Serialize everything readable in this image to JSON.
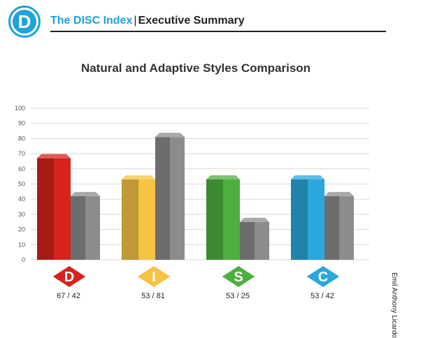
{
  "header": {
    "logo_letter": "D",
    "brand": "The DISC Index",
    "separator": "|",
    "subtitle": "Executive Summary"
  },
  "side_label": "Emil Anthony Licardo",
  "colors": {
    "accent": "#1fa3d8",
    "grid": "#d7d7d7",
    "adaptive": "#8c8c8c"
  },
  "chart_data": {
    "type": "bar",
    "title": "Natural and Adaptive Styles Comparison",
    "categories": [
      "D",
      "I",
      "S",
      "C"
    ],
    "category_colors": [
      "#d6231c",
      "#f6c343",
      "#4caf3e",
      "#2aa7dd"
    ],
    "series": [
      {
        "values": [
          67,
          53,
          53,
          53
        ]
      },
      {
        "values": [
          42,
          81,
          25,
          42
        ]
      }
    ],
    "value_labels": [
      "67 / 42",
      "53 / 81",
      "53 / 25",
      "53 / 42"
    ],
    "ylim": [
      0,
      100
    ],
    "yticks": [
      0,
      10,
      20,
      30,
      40,
      50,
      60,
      70,
      80,
      90,
      100
    ],
    "grid": true,
    "legend": "none"
  }
}
